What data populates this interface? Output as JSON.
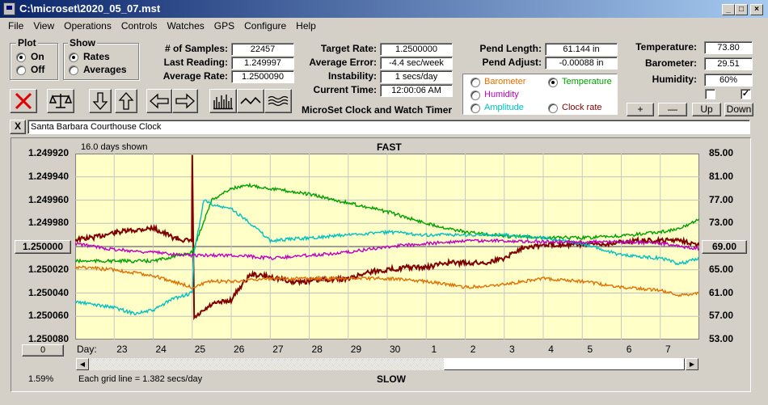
{
  "window": {
    "title": "C:\\microset\\2020_05_07.mst"
  },
  "menu": [
    "File",
    "View",
    "Operations",
    "Controls",
    "Watches",
    "GPS",
    "Configure",
    "Help"
  ],
  "plot_group": {
    "label": "Plot",
    "on": "On",
    "off": "Off",
    "selected": "On"
  },
  "show_group": {
    "label": "Show",
    "rates": "Rates",
    "averages": "Averages",
    "selected": "Rates"
  },
  "stats": {
    "samples_label": "# of Samples:",
    "samples": "22457",
    "last_reading_label": "Last Reading:",
    "last_reading": "1.249997",
    "average_rate_label": "Average Rate:",
    "average_rate": "1.2500090"
  },
  "targets": {
    "target_rate_label": "Target Rate:",
    "target_rate": "1.2500000",
    "average_error_label": "Average Error:",
    "average_error": "-4.4 sec/week",
    "instability_label": "Instability:",
    "instability": "1 secs/day",
    "current_time_label": "Current Time:",
    "current_time": "12:00:06 AM"
  },
  "app_caption": "MicroSet Clock and Watch Timer",
  "pendulum": {
    "length_label": "Pend Length:",
    "length": "61.144 in",
    "adjust_label": "Pend Adjust:",
    "adjust": "-0.00088 in"
  },
  "sensor_select": {
    "barometer": "Barometer",
    "temperature": "Temperature",
    "humidity": "Humidity",
    "amplitude": "Amplitude",
    "clock_rate": "Clock rate",
    "selected": "Temperature",
    "colors": {
      "barometer": "#e07000",
      "temperature": "#00a000",
      "humidity": "#c000c0",
      "amplitude": "#00c0c0",
      "clock_rate": "#800000"
    }
  },
  "environment": {
    "temperature_label": "Temperature:",
    "temperature": "73.80",
    "barometer_label": "Barometer:",
    "barometer": "29.51",
    "humidity_label": "Humidity:",
    "humidity": "60%"
  },
  "checkboxes": [
    {
      "checked": false
    },
    {
      "checked": true
    }
  ],
  "adjust_buttons": {
    "plus": "+",
    "minus": "—",
    "up": "Up",
    "down": "Down"
  },
  "toolbar_icons": [
    "clear-x-icon",
    "balance-scale-icon",
    "arrow-down-icon",
    "arrow-up-icon",
    "arrow-left-icon",
    "arrow-right-icon",
    "bar-graph-icon",
    "wave-icon",
    "multi-wave-icon"
  ],
  "clock_name": {
    "close_label": "X",
    "value": "Santa Barbara Courthouse Clock"
  },
  "chart": {
    "top_label": "FAST",
    "bottom_label": "SLOW",
    "days_shown": "16.0 days shown",
    "grid_note": "Each grid line = 1.382 secs/day",
    "center_left_button": "1.250000",
    "center_right_button": "69.00",
    "zero_button": "0",
    "percent": "1.59%",
    "day_prefix": "Day:"
  },
  "chart_data": {
    "type": "line",
    "left_axis": {
      "ticks": [
        "1.249920",
        "1.249940",
        "1.249960",
        "1.249980",
        "1.250020",
        "1.250040",
        "1.250060",
        "1.250080"
      ],
      "range": [
        1.24992,
        1.25008
      ],
      "inverted": true
    },
    "right_axis": {
      "ticks": [
        "85.00",
        "81.00",
        "77.00",
        "73.00",
        "65.00",
        "61.00",
        "57.00",
        "53.00"
      ],
      "range": [
        53,
        85
      ]
    },
    "x_days": [
      "23",
      "24",
      "25",
      "26",
      "27",
      "28",
      "29",
      "30",
      "1",
      "2",
      "3",
      "4",
      "5",
      "6",
      "7"
    ],
    "grid": true,
    "series": [
      {
        "key": "clock_rate",
        "color": "#800000",
        "x": [
          0,
          0.5,
          1,
          1.5,
          2,
          2.5,
          2.99,
          3.0,
          3.05,
          3.2,
          3.5,
          4,
          4.2,
          4.5,
          5,
          5.5,
          6,
          6.5,
          7,
          7.5,
          8,
          8.5,
          9,
          9.5,
          10,
          10.5,
          11,
          11.5,
          12,
          12.5,
          13,
          13.5,
          14,
          14.5,
          15,
          15.5,
          16
        ],
        "y": [
          1.249994,
          1.249992,
          1.249988,
          1.249986,
          1.249984,
          1.249992,
          1.249996,
          1.24992,
          1.250062,
          1.250058,
          1.25005,
          1.250046,
          1.250036,
          1.250024,
          1.250026,
          1.25003,
          1.25003,
          1.250028,
          1.250028,
          1.250022,
          1.25002,
          1.250018,
          1.250018,
          1.250014,
          1.250014,
          1.250014,
          1.25001,
          1.25,
          1.249999,
          1.249998,
          1.249998,
          1.249998,
          1.249996,
          1.249995,
          1.249995,
          1.249994,
          1.249999
        ]
      },
      {
        "key": "temperature",
        "color": "#00a000",
        "x": [
          0,
          1,
          2,
          3,
          3.5,
          4,
          4.5,
          5,
          6,
          7,
          8,
          9,
          10,
          11,
          12,
          13,
          14,
          15,
          15.5,
          16
        ],
        "y": [
          66.5,
          66.5,
          66.5,
          68,
          77,
          79,
          79.5,
          79,
          78,
          76.5,
          75,
          73,
          71.5,
          70.8,
          70.6,
          70.5,
          70.8,
          71.5,
          72,
          73.8
        ]
      },
      {
        "key": "amplitude",
        "color": "#00c0c0",
        "x": [
          0,
          0.5,
          1,
          1.5,
          2,
          2.5,
          3,
          3.05,
          3.3,
          3.6,
          4,
          4.5,
          5,
          6,
          7,
          8,
          9,
          10,
          11,
          12,
          13,
          14,
          15,
          15.5,
          16
        ],
        "y": [
          59.5,
          59,
          58.5,
          57.5,
          58,
          60,
          61,
          68,
          77,
          76,
          75.5,
          73,
          70,
          70.5,
          71,
          71.5,
          71,
          71,
          71,
          70.5,
          69.5,
          67.5,
          67,
          66,
          67
        ]
      },
      {
        "key": "humidity",
        "color": "#c000c0",
        "x": [
          0,
          1,
          2,
          3,
          3.5,
          4,
          4.5,
          5,
          6,
          7,
          8,
          9,
          10,
          11,
          12,
          13,
          14,
          15,
          15.5,
          16
        ],
        "y": [
          69.5,
          68.5,
          68,
          67.5,
          67.5,
          67.5,
          67.3,
          67,
          67.5,
          68,
          69,
          69.5,
          70,
          70,
          69.8,
          69.8,
          69.8,
          69.6,
          69,
          68.6
        ]
      },
      {
        "key": "barometer",
        "color": "#e07000",
        "x": [
          0,
          1,
          2,
          3,
          3.5,
          4,
          5,
          6,
          7,
          8,
          9,
          10,
          11,
          12,
          13,
          14,
          15,
          15.5,
          16
        ],
        "y": [
          65.5,
          65,
          64,
          62,
          63,
          63,
          63.5,
          63.5,
          63.5,
          63.5,
          63,
          62,
          62.5,
          63.5,
          63,
          62,
          61.5,
          60.5,
          61
        ]
      }
    ]
  }
}
